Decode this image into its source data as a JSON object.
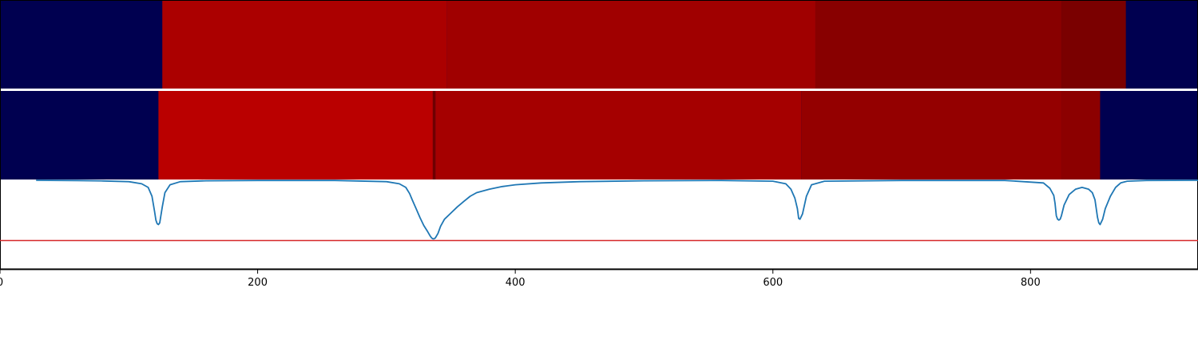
{
  "chart_data": {
    "type": "heatmap",
    "title": "",
    "xlabel": "",
    "ylabel": "",
    "xlim": [
      0,
      930
    ],
    "x_ticks": [
      "0",
      "200",
      "400",
      "600",
      "800"
    ],
    "x_tick_values": [
      0,
      200,
      400,
      600,
      800
    ],
    "background_color": "#000050",
    "segment_colors": [
      "#ab0000",
      "#a00000",
      "#880000",
      "#7a0000",
      "#ba0000",
      "#a50000",
      "#940000",
      "#8c0000",
      "#6e0000"
    ],
    "tracks": [
      {
        "segments": [
          {
            "start": 126,
            "end": 347,
            "color": "#ab0000"
          },
          {
            "start": 347,
            "end": 633,
            "color": "#a00000"
          },
          {
            "start": 633,
            "end": 824,
            "color": "#880000"
          },
          {
            "start": 824,
            "end": 874,
            "color": "#7a0000"
          }
        ]
      },
      {
        "segments": [
          {
            "start": 123,
            "end": 336,
            "color": "#ba0000"
          },
          {
            "start": 336,
            "end": 338,
            "color": "#6e0000"
          },
          {
            "start": 338,
            "end": 622,
            "color": "#a50000"
          },
          {
            "start": 622,
            "end": 824,
            "color": "#940000"
          },
          {
            "start": 824,
            "end": 854,
            "color": "#8c0000"
          }
        ]
      }
    ],
    "line_series": {
      "color": "#1f77b4",
      "ylim": [
        0,
        1
      ],
      "threshold": 0.32,
      "threshold_color": "#d62728",
      "x": [
        28,
        60,
        80,
        100,
        110,
        115,
        118,
        120,
        121,
        122,
        123,
        124,
        126,
        128,
        132,
        140,
        160,
        200,
        260,
        300,
        310,
        315,
        318,
        320,
        323,
        326,
        329,
        332,
        334,
        335,
        336,
        337,
        338,
        340,
        342,
        345,
        350,
        355,
        360,
        365,
        370,
        380,
        390,
        400,
        420,
        450,
        500,
        560,
        600,
        610,
        614,
        617,
        619,
        620,
        621,
        623,
        626,
        630,
        640,
        700,
        780,
        810,
        815,
        818,
        819,
        820,
        821,
        822,
        823,
        824,
        826,
        830,
        835,
        840,
        845,
        848,
        850,
        851,
        852,
        853,
        854,
        856,
        858,
        862,
        866,
        870,
        875,
        890,
        930
      ],
      "y": [
        1.0,
        0.997,
        0.993,
        0.985,
        0.96,
        0.92,
        0.82,
        0.65,
        0.55,
        0.51,
        0.5,
        0.52,
        0.7,
        0.86,
        0.95,
        0.985,
        0.995,
        0.998,
        0.998,
        0.985,
        0.96,
        0.92,
        0.85,
        0.78,
        0.68,
        0.58,
        0.49,
        0.42,
        0.37,
        0.35,
        0.34,
        0.34,
        0.35,
        0.4,
        0.48,
        0.56,
        0.63,
        0.7,
        0.76,
        0.82,
        0.86,
        0.9,
        0.93,
        0.95,
        0.97,
        0.985,
        0.995,
        0.998,
        0.99,
        0.96,
        0.9,
        0.8,
        0.68,
        0.57,
        0.56,
        0.62,
        0.82,
        0.95,
        0.99,
        0.998,
        0.998,
        0.97,
        0.91,
        0.83,
        0.74,
        0.6,
        0.56,
        0.55,
        0.56,
        0.6,
        0.72,
        0.84,
        0.9,
        0.92,
        0.9,
        0.86,
        0.78,
        0.68,
        0.58,
        0.52,
        0.5,
        0.56,
        0.68,
        0.82,
        0.92,
        0.97,
        0.99,
        0.998,
        1.0
      ]
    }
  }
}
